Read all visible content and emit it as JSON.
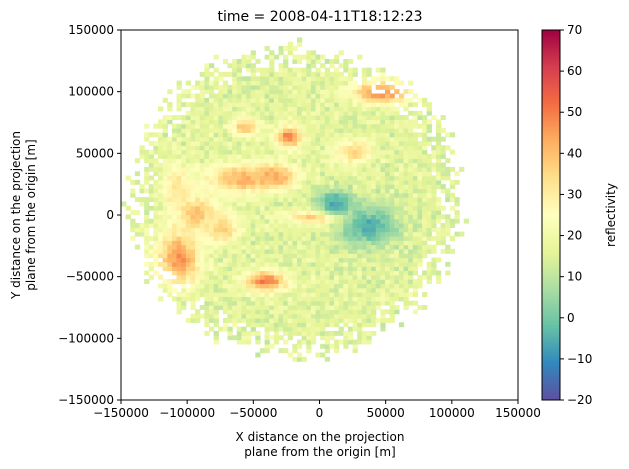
{
  "chart_data": {
    "type": "heatmap",
    "title": "time = 2008-04-11T18:12:23",
    "xlabel": [
      "X distance on the projection",
      "plane from the origin [m]"
    ],
    "ylabel": [
      "Y distance on the projection",
      "plane from the origin [m]"
    ],
    "xlim": [
      -150000,
      150000
    ],
    "ylim": [
      -150000,
      150000
    ],
    "xticks": [
      -150000,
      -100000,
      -50000,
      0,
      50000,
      100000,
      150000
    ],
    "yticks": [
      -150000,
      -100000,
      -50000,
      0,
      50000,
      100000,
      150000
    ],
    "xtick_labels": [
      "−150000",
      "−100000",
      "−50000",
      "0",
      "50000",
      "100000",
      "150000"
    ],
    "ytick_labels": [
      "−150000",
      "−100000",
      "−50000",
      "0",
      "50000",
      "100000",
      "150000"
    ],
    "grid": false,
    "colorbar": {
      "label": "reflectivity",
      "range": [
        -20,
        70
      ],
      "ticks": [
        -20,
        -10,
        0,
        10,
        20,
        30,
        40,
        50,
        60,
        70
      ],
      "tick_labels": [
        "−20",
        "−10",
        "0",
        "10",
        "20",
        "30",
        "40",
        "50",
        "60",
        "70"
      ],
      "colormap": [
        "#5e4fa2",
        "#3288bd",
        "#66c2a5",
        "#abdda4",
        "#e6f598",
        "#ffffbf",
        "#fee08b",
        "#fdae61",
        "#f46d43",
        "#d53e4f",
        "#9e0142"
      ]
    },
    "field": {
      "background_value": 16,
      "coverage": {
        "center": [
          -20000,
          10000
        ],
        "radius": 125000
      },
      "cells": [
        {
          "center": [
            -108000,
            -36000
          ],
          "radius": [
            16000,
            22000
          ],
          "value": 47
        },
        {
          "center": [
            -95000,
            0
          ],
          "radius": [
            14000,
            14000
          ],
          "value": 40
        },
        {
          "center": [
            -60000,
            28000
          ],
          "radius": [
            26000,
            12000
          ],
          "value": 42
        },
        {
          "center": [
            -35000,
            30000
          ],
          "radius": [
            16000,
            9000
          ],
          "value": 44
        },
        {
          "center": [
            -25000,
            62000
          ],
          "radius": [
            10000,
            9000
          ],
          "value": 50
        },
        {
          "center": [
            -58000,
            70000
          ],
          "radius": [
            10000,
            7000
          ],
          "value": 40
        },
        {
          "center": [
            -42000,
            -55000
          ],
          "radius": [
            16000,
            8000
          ],
          "value": 50
        },
        {
          "center": [
            45000,
            98000
          ],
          "radius": [
            22000,
            9000
          ],
          "value": 48
        },
        {
          "center": [
            0,
            -3000
          ],
          "radius": [
            26000,
            6000
          ],
          "value": 42
        },
        {
          "center": [
            -75000,
            -12000
          ],
          "radius": [
            12000,
            12000
          ],
          "value": 38
        },
        {
          "center": [
            25000,
            50000
          ],
          "radius": [
            14000,
            10000
          ],
          "value": 36
        },
        {
          "center": [
            -110000,
            20000
          ],
          "radius": [
            10000,
            20000
          ],
          "value": 33
        },
        {
          "center": [
            35000,
            -10000
          ],
          "radius": [
            22000,
            16000
          ],
          "value": -6
        },
        {
          "center": [
            10000,
            8000
          ],
          "radius": [
            14000,
            10000
          ],
          "value": -8
        }
      ]
    }
  }
}
